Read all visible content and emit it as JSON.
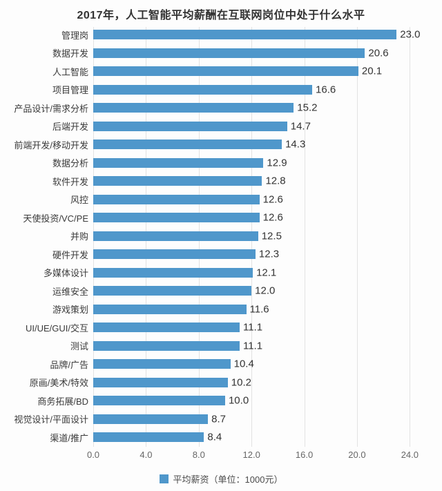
{
  "title": "2017年，人工智能平均薪酬在互联网岗位中处于什么水平",
  "colors": {
    "bar": "#4f97cb",
    "grid": "#e2e2e2",
    "title_text": "#333333",
    "axis_text": "#666666"
  },
  "chart_data": {
    "type": "bar",
    "orientation": "horizontal",
    "title": "2017年，人工智能平均薪酬在互联网岗位中处于什么水平",
    "categories": [
      "管理岗",
      "数据开发",
      "人工智能",
      "项目管理",
      "产品设计/需求分析",
      "后端开发",
      "前端开发/移动开发",
      "数据分析",
      "软件开发",
      "风控",
      "天使投资/VC/PE",
      "并购",
      "硬件开发",
      "多媒体设计",
      "运维安全",
      "游戏策划",
      "UI/UE/GUI/交互",
      "测试",
      "品牌/广告",
      "原画/美术/特效",
      "商务拓展/BD",
      "视觉设计/平面设计",
      "渠道/推广"
    ],
    "values": [
      23.0,
      20.6,
      20.1,
      16.6,
      15.2,
      14.7,
      14.3,
      12.9,
      12.8,
      12.6,
      12.6,
      12.5,
      12.3,
      12.1,
      12.0,
      11.6,
      11.1,
      11.1,
      10.4,
      10.2,
      10.0,
      8.7,
      8.4
    ],
    "xlabel": "",
    "ylabel": "",
    "xlim": [
      0,
      25.5
    ],
    "ticks": [
      0,
      4,
      8,
      12,
      16,
      20,
      24
    ],
    "tick_labels": [
      "0.0",
      "4.0",
      "8.0",
      "12.0",
      "16.0",
      "20.0",
      "24.0"
    ],
    "grid": true,
    "value_labels": true,
    "legend": {
      "position": "bottom",
      "label": "平均薪资（单位：1000元）"
    }
  },
  "legend": {
    "label": "平均薪资（单位：1000元）"
  }
}
